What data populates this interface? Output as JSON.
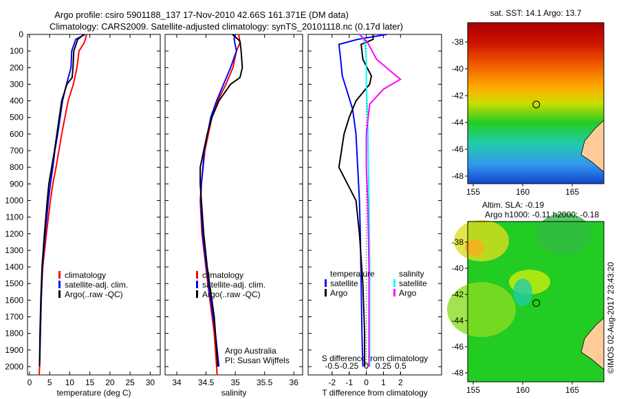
{
  "title_line1": "Argo profile: csiro 5901188_137 17-Nov-2010 42.66S 161.371E (DM data)",
  "title_line2": "Climatology: CARS2009. Satellite-adjusted climatology: synTS_20101118.nc (0.17d later)",
  "colors": {
    "climatology": "#ff0000",
    "satellite": "#0000ff",
    "argo": "#000000",
    "sal_satellite": "#00ffff",
    "sal_argo": "#ff00ff",
    "land": "#ffcc99"
  },
  "chart_data": [
    {
      "type": "line",
      "id": "temperature",
      "xlabel": "temperature (deg C)",
      "ylabel": "",
      "xlim": [
        -0.5,
        32.5
      ],
      "ylim": [
        2050,
        0
      ],
      "xticks": [
        0,
        5,
        10,
        15,
        20,
        25,
        30
      ],
      "yticks": [
        0,
        100,
        200,
        300,
        400,
        500,
        600,
        700,
        800,
        900,
        1000,
        1100,
        1200,
        1300,
        1400,
        1500,
        1600,
        1700,
        1800,
        1900,
        2000
      ],
      "legend": [
        "climatology",
        "satellite-adj. clim.",
        "Argo(..raw -QC)"
      ],
      "legend_placement": "lower-center",
      "series": [
        {
          "name": "climatology",
          "color": "climatology",
          "depth": [
            0,
            50,
            100,
            200,
            300,
            400,
            500,
            600,
            700,
            800,
            900,
            1000,
            1200,
            1400,
            1600,
            1800,
            2000,
            2050
          ],
          "values": [
            14.2,
            13.6,
            12.3,
            11.8,
            10.9,
            9.6,
            8.8,
            8.0,
            7.3,
            6.6,
            5.8,
            5.2,
            4.2,
            3.3,
            2.9,
            2.7,
            2.5,
            2.4
          ]
        },
        {
          "name": "satellite-adj. clim.",
          "color": "satellite",
          "depth": [
            0,
            30,
            100,
            200,
            300,
            400,
            500,
            600,
            700,
            800,
            900,
            1000,
            1200,
            1400,
            1600,
            1800,
            2000
          ],
          "values": [
            13.8,
            11.5,
            10.5,
            10.3,
            9.2,
            8.2,
            7.6,
            7.0,
            6.3,
            5.8,
            5.2,
            4.7,
            3.9,
            3.2,
            2.9,
            2.7,
            2.5
          ]
        },
        {
          "name": "Argo(..raw -QC)",
          "color": "argo",
          "depth": [
            0,
            30,
            100,
            200,
            260,
            300,
            400,
            500,
            600,
            700,
            800,
            900,
            1000,
            1200,
            1400,
            1600,
            1800,
            2000
          ],
          "values": [
            13.5,
            12.0,
            11.0,
            10.8,
            10.6,
            9.3,
            8.0,
            7.4,
            6.8,
            6.2,
            5.5,
            4.8,
            4.4,
            3.7,
            3.1,
            2.8,
            2.6,
            2.5
          ]
        }
      ]
    },
    {
      "type": "line",
      "id": "salinity",
      "xlabel": "salinity",
      "xlim": [
        33.8,
        36.15
      ],
      "ylim": [
        2050,
        0
      ],
      "xticks": [
        34,
        34.5,
        35,
        35.5,
        36
      ],
      "legend": [
        "climatology",
        "satellite-adj. clim.",
        "Argo(..raw -QC)"
      ],
      "annotation": [
        "Argo Australia",
        "PI: Susan Wijffels"
      ],
      "series": [
        {
          "name": "climatology",
          "color": "climatology",
          "depth": [
            0,
            50,
            100,
            200,
            300,
            400,
            500,
            700,
            900,
            1000,
            1200,
            1500,
            1800,
            2000,
            2050
          ],
          "values": [
            35.06,
            35.08,
            35.02,
            34.96,
            34.84,
            34.7,
            34.6,
            34.48,
            34.42,
            34.4,
            34.43,
            34.53,
            34.64,
            34.68,
            34.69
          ]
        },
        {
          "name": "satellite-adj. clim.",
          "color": "satellite",
          "depth": [
            0,
            30,
            100,
            200,
            300,
            400,
            500,
            700,
            900,
            1000,
            1200,
            1500,
            1800,
            2000
          ],
          "values": [
            35.0,
            34.98,
            35.02,
            34.92,
            34.8,
            34.68,
            34.58,
            34.47,
            34.42,
            34.41,
            34.44,
            34.54,
            34.66,
            34.72
          ]
        },
        {
          "name": "Argo(..raw -QC)",
          "color": "argo",
          "depth": [
            0,
            40,
            100,
            200,
            260,
            300,
            400,
            500,
            600,
            800,
            900,
            1000,
            1200,
            1400,
            1700,
            2000
          ],
          "values": [
            34.95,
            35.08,
            35.1,
            35.12,
            35.08,
            34.92,
            34.72,
            34.6,
            34.52,
            34.4,
            34.4,
            34.42,
            34.46,
            34.52,
            34.64,
            34.7
          ]
        }
      ]
    },
    {
      "type": "line",
      "id": "difference",
      "xlabel": "T difference from climatology",
      "x2label": "S difference from climatology",
      "xlim": [
        -3.4,
        4.4
      ],
      "ylim": [
        2050,
        0
      ],
      "xticks": [
        -2,
        -1,
        0,
        1,
        2
      ],
      "x2ticks": [
        -0.5,
        -0.25,
        0,
        0.25,
        0.5
      ],
      "legend_temperature": {
        "title": "temperature",
        "items": [
          "satellite",
          "Argo"
        ]
      },
      "legend_salinity": {
        "title": "salinity",
        "items": [
          "satellite",
          "Argo"
        ]
      },
      "series": [
        {
          "name": "T satellite",
          "color": "satellite",
          "units": "T",
          "depth": [
            0,
            30,
            60,
            150,
            250,
            350,
            450,
            600,
            800,
            1000,
            1200,
            1500,
            1800,
            2000
          ],
          "values": [
            1.2,
            -0.5,
            -1.6,
            -1.5,
            -1.4,
            -1.1,
            -0.8,
            -0.6,
            -0.5,
            -0.4,
            -0.35,
            -0.3,
            -0.25,
            -0.2
          ]
        },
        {
          "name": "T Argo",
          "color": "argo",
          "units": "T",
          "depth": [
            0,
            30,
            60,
            150,
            250,
            300,
            400,
            500,
            600,
            800,
            900,
            1000,
            1200,
            1500,
            1800,
            2000
          ],
          "values": [
            0.4,
            0.4,
            -0.3,
            -0.2,
            0.3,
            0.2,
            -0.6,
            -1.0,
            -1.3,
            -1.6,
            -1.1,
            -0.6,
            -0.4,
            -0.2,
            -0.1,
            -0.1
          ]
        },
        {
          "name": "S satellite",
          "color": "sal_satellite",
          "units": "S",
          "depth": [
            0,
            50,
            150,
            300,
            500,
            800,
            1000,
            1400,
            1700,
            2000
          ],
          "values": [
            -0.08,
            -0.02,
            0.0,
            0.0,
            0.02,
            0.03,
            0.04,
            0.05,
            0.05,
            0.05
          ]
        },
        {
          "name": "S Argo",
          "color": "sal_argo",
          "units": "S",
          "depth": [
            0,
            50,
            150,
            220,
            270,
            330,
            420,
            600,
            800,
            1000,
            1400,
            1700,
            2000
          ],
          "values": [
            -0.1,
            0.02,
            0.15,
            0.35,
            0.5,
            0.25,
            0.05,
            0.0,
            0.0,
            0.02,
            0.04,
            0.04,
            0.04
          ]
        }
      ]
    }
  ],
  "maps": [
    {
      "title": "sat. SST: 14.1 Argo: 13.7",
      "xticks": [
        155,
        160,
        165
      ],
      "yticks": [
        -38,
        -40,
        -42,
        -44,
        -46,
        -48
      ],
      "profile_lon": 161.371,
      "profile_lat": -42.66
    },
    {
      "title_line1": "Altim. SLA: -0.19",
      "title_line2": "Argo h1000: -0.11 h2000: -0.18",
      "xticks": [
        155,
        160,
        165
      ],
      "yticks": [
        -38,
        -40,
        -42,
        -44,
        -46,
        -48
      ],
      "profile_lon": 161.371,
      "profile_lat": -42.66
    }
  ],
  "credit": "©IMOS 02-Aug-2017 23:43:20"
}
